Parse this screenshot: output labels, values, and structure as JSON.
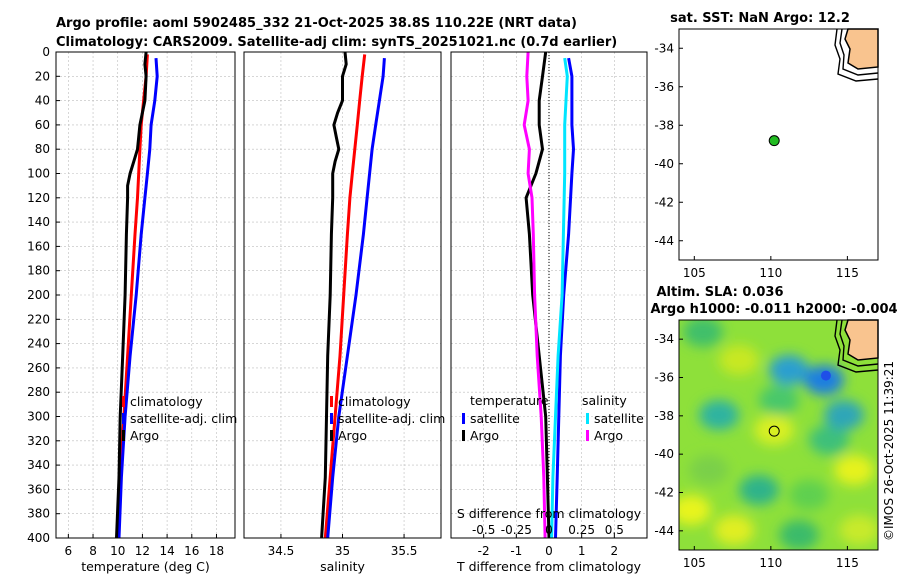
{
  "header": {
    "title_line1": "Argo profile: aoml 5902485_332 21-Oct-2025 38.8S 110.22E (NRT data)",
    "title_line2": "Climatology: CARS2009. Satellite-adj clim: synTS_20251021.nc (0.7d earlier)"
  },
  "colors": {
    "climatology": "#ff0000",
    "satellite_adj": "#0000ff",
    "argo": "#000000",
    "sal_satellite": "#00e5ff",
    "sal_argo": "#ff00ff",
    "land": "#f9c48f"
  },
  "watermark": "©IMOS 26-Oct-2025 11:39:21",
  "chart_data": [
    {
      "type": "line",
      "id": "temperature",
      "xlabel": "temperature (deg C)",
      "ylabel": "",
      "xlim": [
        5,
        19.5
      ],
      "ylim": [
        400,
        0
      ],
      "xticks": [
        6,
        8,
        10,
        12,
        14,
        16,
        18
      ],
      "yticks": [
        0,
        20,
        40,
        60,
        80,
        100,
        120,
        140,
        160,
        180,
        200,
        220,
        240,
        260,
        280,
        300,
        320,
        340,
        360,
        380,
        400
      ],
      "legend": [
        "climatology",
        "satellite-adj. clim",
        "Argo"
      ],
      "series": [
        {
          "name": "climatology",
          "color": "#ff0000",
          "depth": [
            2,
            20,
            40,
            60,
            80,
            100,
            120,
            150,
            200,
            250,
            300,
            350,
            400
          ],
          "values": [
            12.4,
            12.3,
            12.1,
            11.9,
            11.8,
            11.7,
            11.6,
            11.4,
            11.1,
            10.8,
            10.5,
            10.2,
            10.0
          ]
        },
        {
          "name": "satellite-adj. clim",
          "color": "#0000ff",
          "depth": [
            5,
            20,
            40,
            60,
            80,
            100,
            120,
            150,
            200,
            250,
            300,
            350,
            400
          ],
          "values": [
            13.1,
            13.2,
            13.0,
            12.7,
            12.6,
            12.4,
            12.2,
            11.9,
            11.5,
            11.0,
            10.6,
            10.3,
            10.1
          ]
        },
        {
          "name": "Argo",
          "color": "#000000",
          "depth": [
            0,
            10,
            20,
            40,
            50,
            60,
            70,
            80,
            90,
            100,
            110,
            120,
            150,
            200,
            250,
            300,
            350,
            400
          ],
          "values": [
            12.3,
            12.2,
            12.3,
            12.2,
            12.0,
            11.8,
            11.7,
            11.6,
            11.3,
            11.0,
            10.8,
            10.8,
            10.7,
            10.6,
            10.4,
            10.2,
            10.1,
            9.9
          ]
        }
      ]
    },
    {
      "type": "line",
      "id": "salinity",
      "xlabel": "salinity",
      "ylabel": "",
      "xlim": [
        34.2,
        35.8
      ],
      "ylim": [
        400,
        0
      ],
      "xticks": [
        34.5,
        35,
        35.5
      ],
      "legend": [
        "climatology",
        "satellite-adj. clim",
        "Argo"
      ],
      "series": [
        {
          "name": "climatology",
          "color": "#ff0000",
          "depth": [
            2,
            20,
            40,
            60,
            80,
            100,
            120,
            150,
            200,
            250,
            300,
            350,
            400
          ],
          "values": [
            35.18,
            35.16,
            35.14,
            35.12,
            35.1,
            35.08,
            35.06,
            35.04,
            35.01,
            34.98,
            34.94,
            34.9,
            34.86
          ]
        },
        {
          "name": "satellite-adj. clim",
          "color": "#0000ff",
          "depth": [
            5,
            20,
            40,
            60,
            80,
            100,
            120,
            150,
            200,
            250,
            300,
            350,
            400
          ],
          "values": [
            35.34,
            35.33,
            35.3,
            35.27,
            35.24,
            35.22,
            35.2,
            35.17,
            35.11,
            35.04,
            34.97,
            34.92,
            34.88
          ]
        },
        {
          "name": "Argo",
          "color": "#000000",
          "depth": [
            0,
            10,
            20,
            40,
            50,
            60,
            70,
            80,
            90,
            100,
            120,
            150,
            200,
            250,
            300,
            350,
            400
          ],
          "values": [
            35.02,
            35.03,
            35.0,
            35.0,
            34.96,
            34.93,
            34.95,
            34.97,
            34.94,
            34.92,
            34.92,
            34.91,
            34.9,
            34.88,
            34.87,
            34.86,
            34.83
          ]
        }
      ]
    },
    {
      "type": "line",
      "id": "difference",
      "xlabel": "T difference from climatology",
      "top_xlabel": "S difference from climatology",
      "xlim": [
        -3,
        3
      ],
      "ylim": [
        400,
        0
      ],
      "xticks": [
        -2,
        -1,
        0,
        1,
        2
      ],
      "top_xlim": [
        -0.75,
        0.75
      ],
      "top_xticks": [
        -0.5,
        -0.25,
        0,
        0.25,
        0.5
      ],
      "legend_temperature_title": "temperature",
      "legend_salinity_title": "salinity",
      "legend_temperature": [
        "satellite",
        "Argo"
      ],
      "legend_salinity": [
        "satellite",
        "Argo"
      ],
      "series": [
        {
          "name": "temperature satellite",
          "color": "#0000ff",
          "axis": "T",
          "depth": [
            5,
            20,
            40,
            60,
            80,
            100,
            150,
            200,
            250,
            300,
            350,
            400
          ],
          "values": [
            0.6,
            0.7,
            0.7,
            0.7,
            0.75,
            0.7,
            0.6,
            0.45,
            0.35,
            0.3,
            0.25,
            0.2
          ]
        },
        {
          "name": "temperature Argo",
          "color": "#000000",
          "axis": "T",
          "depth": [
            0,
            20,
            40,
            60,
            80,
            100,
            120,
            150,
            200,
            250,
            300,
            350,
            400
          ],
          "values": [
            -0.1,
            -0.2,
            -0.3,
            -0.3,
            -0.2,
            -0.4,
            -0.7,
            -0.6,
            -0.5,
            -0.3,
            -0.1,
            -0.05,
            0.0
          ]
        },
        {
          "name": "salinity satellite",
          "color": "#00e5ff",
          "axis": "S",
          "depth": [
            5,
            20,
            40,
            60,
            80,
            100,
            150,
            200,
            250,
            300,
            350,
            400
          ],
          "values": [
            0.12,
            0.14,
            0.13,
            0.12,
            0.12,
            0.12,
            0.11,
            0.1,
            0.07,
            0.05,
            0.03,
            0.02
          ]
        },
        {
          "name": "salinity Argo",
          "color": "#ff00ff",
          "axis": "S",
          "depth": [
            0,
            20,
            40,
            60,
            80,
            100,
            120,
            150,
            200,
            250,
            300,
            350,
            400
          ],
          "values": [
            -0.16,
            -0.17,
            -0.16,
            -0.19,
            -0.15,
            -0.16,
            -0.13,
            -0.12,
            -0.11,
            -0.09,
            -0.06,
            -0.04,
            -0.03
          ]
        }
      ]
    },
    {
      "type": "map",
      "id": "sst_map",
      "title": "sat. SST: NaN Argo: 12.2",
      "xlim": [
        104,
        117
      ],
      "ylim": [
        -45,
        -33
      ],
      "xticks": [
        105,
        110,
        115
      ],
      "yticks": [
        -34,
        -36,
        -38,
        -40,
        -42,
        -44
      ],
      "points": [
        {
          "lon": 110.22,
          "lat": -38.8,
          "color": "#22bb22"
        }
      ]
    },
    {
      "type": "map",
      "id": "sla_map",
      "title_line1": "Altim. SLA: 0.036",
      "title_line2": "Argo h1000: -0.011 h2000: -0.004",
      "xlim": [
        104,
        117
      ],
      "ylim": [
        -45,
        -33
      ],
      "xticks": [
        105,
        110,
        115
      ],
      "yticks": [
        -34,
        -36,
        -38,
        -40,
        -42,
        -44
      ],
      "points": [
        {
          "lon": 110.22,
          "lat": -38.8,
          "color": "#22bb22"
        }
      ]
    }
  ]
}
